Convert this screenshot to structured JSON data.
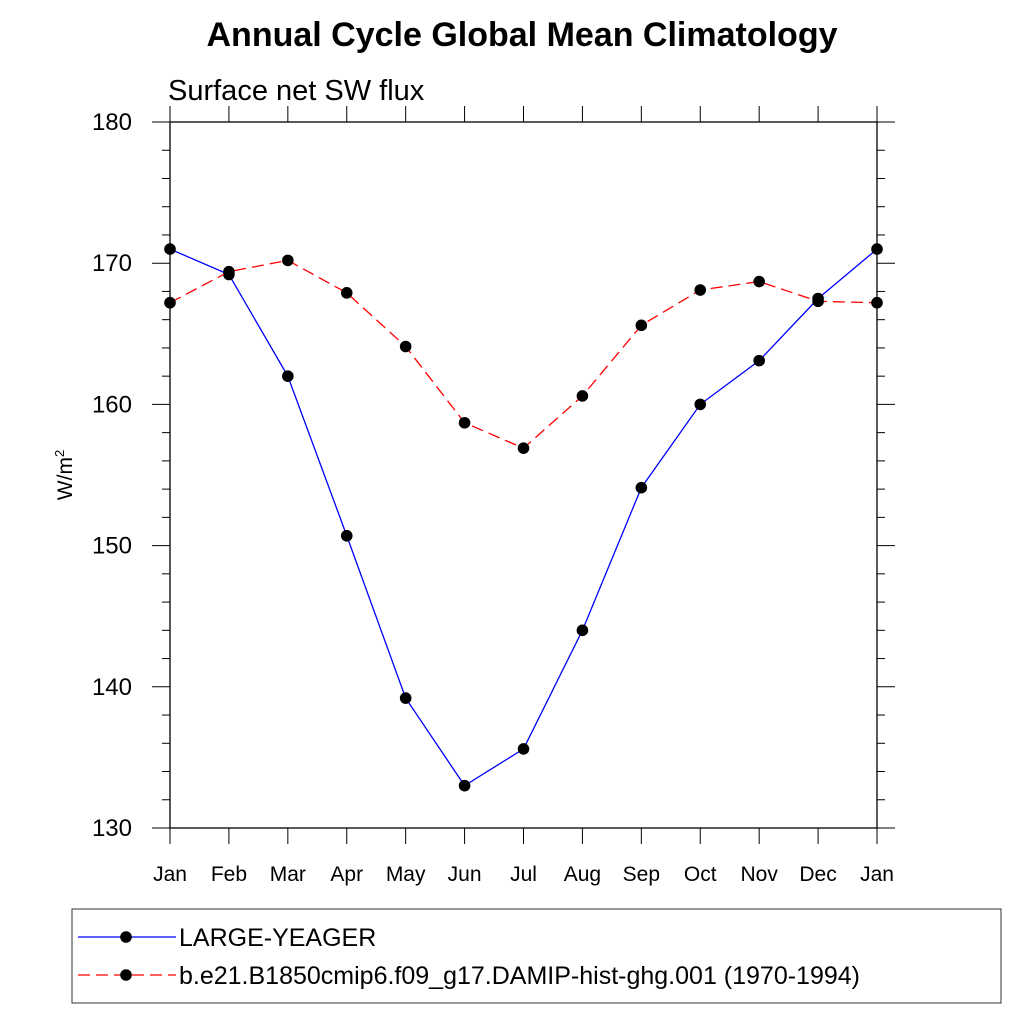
{
  "chart_data": {
    "type": "line",
    "title": "Annual Cycle Global Mean Climatology",
    "subtitle": "Surface net SW flux",
    "ylabel": "W/m",
    "ylabel_sup": "2",
    "xlabel": "",
    "ylim": [
      130,
      180
    ],
    "yticks": [
      130,
      140,
      150,
      160,
      170,
      180
    ],
    "categories": [
      "Jan",
      "Feb",
      "Mar",
      "Apr",
      "May",
      "Jun",
      "Jul",
      "Aug",
      "Sep",
      "Oct",
      "Nov",
      "Dec",
      "Jan"
    ],
    "grid": false,
    "legend_position": "bottom",
    "series": [
      {
        "name": "LARGE-YEAGER",
        "color": "#0000ff",
        "line_style": "solid",
        "marker": "filled-circle",
        "values": [
          171.0,
          169.2,
          162.0,
          150.7,
          139.2,
          133.0,
          135.6,
          144.0,
          154.1,
          160.0,
          163.1,
          167.5,
          171.0
        ]
      },
      {
        "name": "b.e21.B1850cmip6.f09_g17.DAMIP-hist-ghg.001 (1970-1994)",
        "color": "#ff0000",
        "line_style": "dashed",
        "marker": "filled-circle",
        "values": [
          167.2,
          169.4,
          170.2,
          167.9,
          164.1,
          158.7,
          156.9,
          160.6,
          165.6,
          168.1,
          168.7,
          167.3,
          167.2
        ]
      }
    ]
  }
}
